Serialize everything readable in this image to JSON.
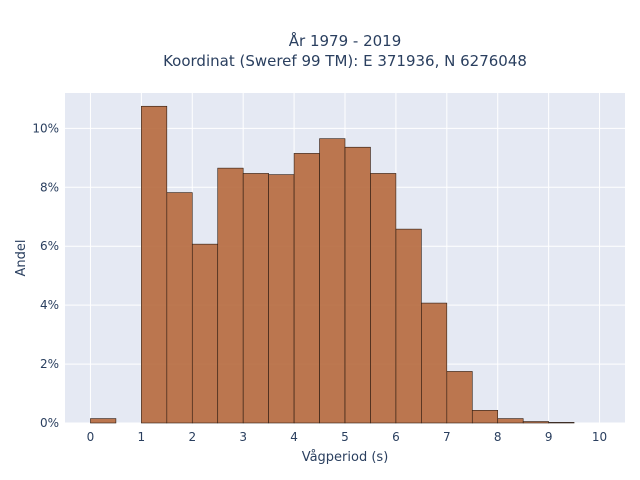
{
  "chart_data": {
    "type": "bar",
    "title": "År 1979 - 2019",
    "subtitle": "Koordinat (Sweref 99 TM): E 371936, N 6276048",
    "xlabel": "Vågperiod (s)",
    "ylabel": "Andel",
    "xlim": [
      -0.5,
      10.5
    ],
    "ylim": [
      0,
      11.2
    ],
    "x_ticks": [
      0,
      1,
      2,
      3,
      4,
      5,
      6,
      7,
      8,
      9,
      10
    ],
    "y_ticks": [
      0,
      2,
      4,
      6,
      8,
      10
    ],
    "y_tick_suffix": "%",
    "bin_width": 0.5,
    "bins": [
      {
        "start": 0.0,
        "value": 0.15
      },
      {
        "start": 1.0,
        "value": 10.75
      },
      {
        "start": 1.5,
        "value": 7.82
      },
      {
        "start": 2.0,
        "value": 6.07
      },
      {
        "start": 2.5,
        "value": 8.65
      },
      {
        "start": 3.0,
        "value": 8.47
      },
      {
        "start": 3.5,
        "value": 8.43
      },
      {
        "start": 4.0,
        "value": 9.15
      },
      {
        "start": 4.5,
        "value": 9.65
      },
      {
        "start": 5.0,
        "value": 9.36
      },
      {
        "start": 5.5,
        "value": 8.47
      },
      {
        "start": 6.0,
        "value": 6.58
      },
      {
        "start": 6.5,
        "value": 4.07
      },
      {
        "start": 7.0,
        "value": 1.75
      },
      {
        "start": 7.5,
        "value": 0.43
      },
      {
        "start": 8.0,
        "value": 0.15
      },
      {
        "start": 8.5,
        "value": 0.05
      },
      {
        "start": 9.0,
        "value": 0.02
      }
    ],
    "bar_color": "#b6693d",
    "plot_background": "#e5e9f3",
    "grid": true
  }
}
